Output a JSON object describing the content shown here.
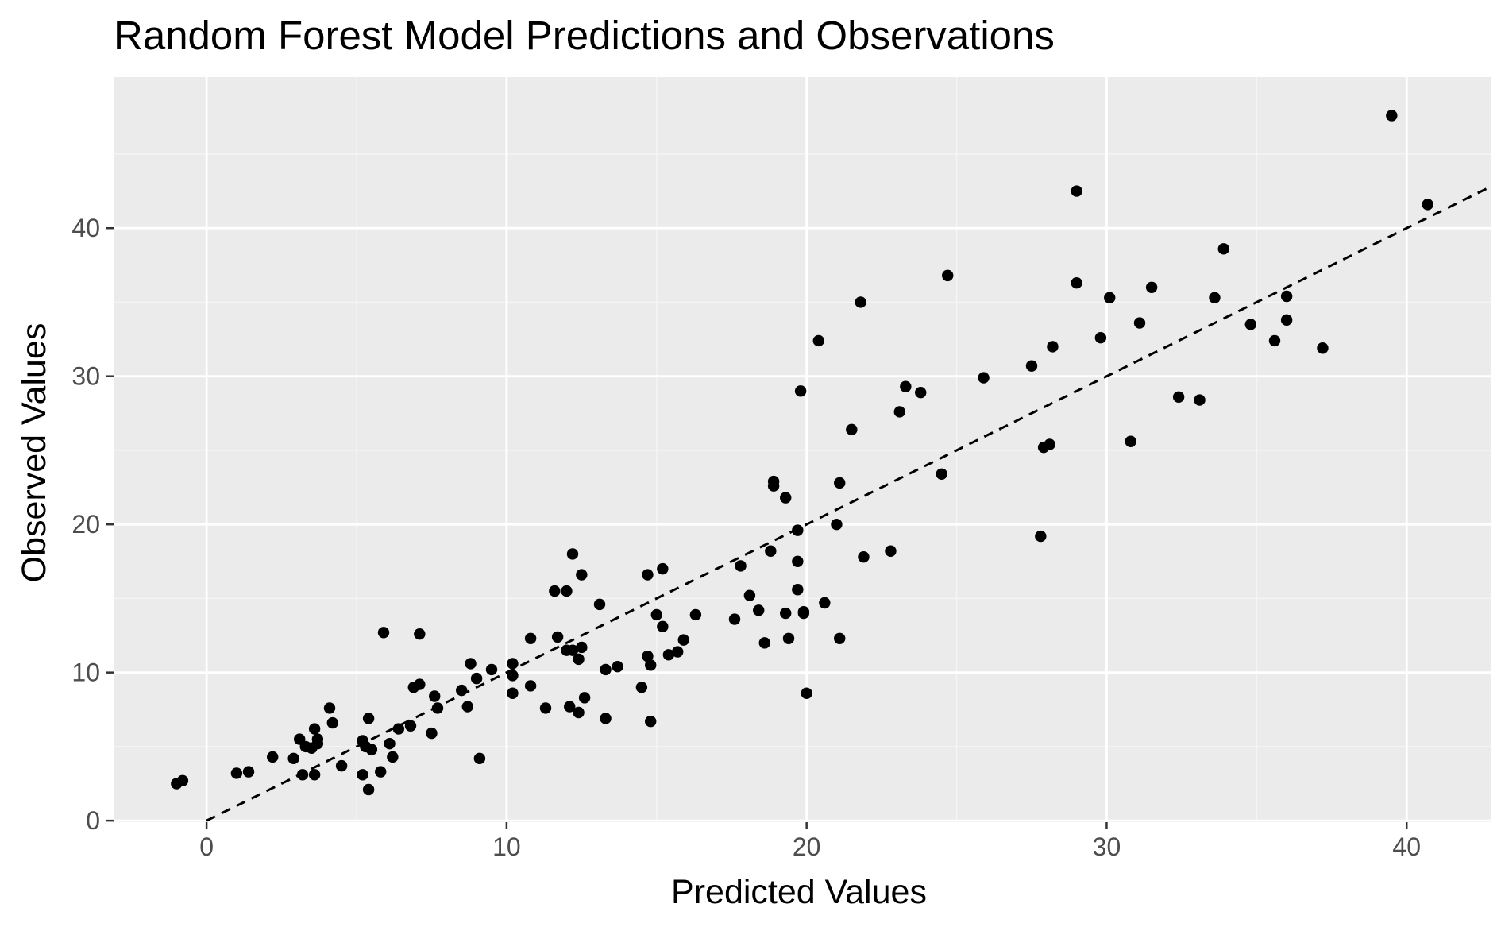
{
  "chart_data": {
    "type": "scatter",
    "title": "Random Forest Model Predictions and Observations",
    "xlabel": "Predicted Values",
    "ylabel": "Observed Values",
    "xlim": [
      -3.1,
      42.8
    ],
    "ylim": [
      -0.1,
      50.2
    ],
    "x_ticks": [
      0,
      10,
      20,
      30,
      40
    ],
    "y_ticks": [
      0,
      10,
      20,
      30,
      40
    ],
    "grid": true,
    "legend": "none",
    "colors": {
      "panel": "#ebebeb",
      "grid_major": "#ffffff",
      "grid_minor": "#f5f5f5",
      "point": "#000000",
      "reference_line": "#000000",
      "tick": "#333333",
      "tick_label": "#4d4d4d"
    },
    "reference_line": {
      "style": "dashed",
      "slope": 1,
      "intercept": 0,
      "x_from": 0,
      "x_to": 42.8
    },
    "points": [
      [
        -1.0,
        2.5
      ],
      [
        -0.8,
        2.7
      ],
      [
        1.0,
        3.2
      ],
      [
        1.4,
        3.3
      ],
      [
        2.2,
        4.3
      ],
      [
        2.9,
        4.2
      ],
      [
        3.1,
        5.5
      ],
      [
        3.2,
        3.1
      ],
      [
        3.3,
        5.0
      ],
      [
        3.5,
        4.9
      ],
      [
        3.6,
        3.1
      ],
      [
        3.6,
        6.2
      ],
      [
        3.7,
        5.2
      ],
      [
        3.7,
        5.5
      ],
      [
        4.1,
        7.6
      ],
      [
        4.2,
        6.6
      ],
      [
        4.5,
        3.7
      ],
      [
        5.2,
        5.4
      ],
      [
        5.2,
        3.1
      ],
      [
        5.3,
        5.0
      ],
      [
        5.4,
        6.9
      ],
      [
        5.4,
        2.1
      ],
      [
        5.5,
        4.8
      ],
      [
        5.8,
        3.3
      ],
      [
        5.9,
        12.7
      ],
      [
        6.1,
        5.2
      ],
      [
        6.2,
        4.3
      ],
      [
        6.4,
        6.2
      ],
      [
        6.8,
        6.4
      ],
      [
        6.9,
        9.0
      ],
      [
        7.1,
        9.2
      ],
      [
        7.1,
        12.6
      ],
      [
        7.5,
        5.9
      ],
      [
        7.6,
        8.4
      ],
      [
        7.7,
        7.6
      ],
      [
        8.5,
        8.8
      ],
      [
        8.7,
        7.7
      ],
      [
        8.8,
        10.6
      ],
      [
        9.0,
        9.6
      ],
      [
        9.1,
        4.2
      ],
      [
        9.5,
        10.2
      ],
      [
        10.2,
        10.6
      ],
      [
        10.2,
        9.8
      ],
      [
        10.2,
        8.6
      ],
      [
        10.8,
        12.3
      ],
      [
        10.8,
        9.1
      ],
      [
        11.3,
        7.6
      ],
      [
        11.6,
        15.5
      ],
      [
        11.7,
        12.4
      ],
      [
        12.0,
        15.5
      ],
      [
        12.0,
        11.5
      ],
      [
        12.1,
        7.7
      ],
      [
        12.2,
        11.5
      ],
      [
        12.2,
        18.0
      ],
      [
        12.4,
        7.3
      ],
      [
        12.4,
        10.9
      ],
      [
        12.5,
        11.7
      ],
      [
        12.5,
        16.6
      ],
      [
        12.6,
        8.3
      ],
      [
        13.1,
        14.6
      ],
      [
        13.3,
        10.2
      ],
      [
        13.3,
        6.9
      ],
      [
        13.7,
        10.4
      ],
      [
        14.5,
        9.0
      ],
      [
        14.7,
        11.1
      ],
      [
        14.7,
        16.6
      ],
      [
        14.8,
        10.5
      ],
      [
        14.8,
        6.7
      ],
      [
        15.0,
        13.9
      ],
      [
        15.2,
        13.1
      ],
      [
        15.2,
        17.0
      ],
      [
        15.4,
        11.2
      ],
      [
        15.7,
        11.4
      ],
      [
        15.9,
        12.2
      ],
      [
        16.3,
        13.9
      ],
      [
        17.6,
        13.6
      ],
      [
        17.8,
        17.2
      ],
      [
        18.1,
        15.2
      ],
      [
        18.4,
        14.2
      ],
      [
        18.6,
        12.0
      ],
      [
        18.8,
        18.2
      ],
      [
        18.9,
        22.6
      ],
      [
        18.9,
        22.9
      ],
      [
        19.3,
        14.0
      ],
      [
        19.3,
        21.8
      ],
      [
        19.4,
        12.3
      ],
      [
        19.7,
        19.6
      ],
      [
        19.7,
        17.5
      ],
      [
        19.7,
        15.6
      ],
      [
        19.8,
        29.0
      ],
      [
        19.9,
        14.0
      ],
      [
        19.9,
        14.1
      ],
      [
        20.0,
        8.6
      ],
      [
        20.4,
        32.4
      ],
      [
        20.6,
        14.7
      ],
      [
        21.0,
        20.0
      ],
      [
        21.1,
        12.3
      ],
      [
        21.1,
        22.8
      ],
      [
        21.5,
        26.4
      ],
      [
        21.8,
        35.0
      ],
      [
        21.9,
        17.8
      ],
      [
        22.8,
        18.2
      ],
      [
        23.1,
        27.6
      ],
      [
        23.3,
        29.3
      ],
      [
        23.8,
        28.9
      ],
      [
        24.5,
        23.4
      ],
      [
        24.7,
        36.8
      ],
      [
        25.9,
        29.9
      ],
      [
        27.5,
        30.7
      ],
      [
        27.8,
        19.2
      ],
      [
        27.9,
        25.2
      ],
      [
        28.1,
        25.4
      ],
      [
        28.2,
        32.0
      ],
      [
        29.0,
        42.5
      ],
      [
        29.0,
        36.3
      ],
      [
        29.8,
        32.6
      ],
      [
        30.1,
        35.3
      ],
      [
        30.8,
        25.6
      ],
      [
        31.1,
        33.6
      ],
      [
        31.5,
        36.0
      ],
      [
        32.4,
        28.6
      ],
      [
        33.1,
        28.4
      ],
      [
        33.6,
        35.3
      ],
      [
        33.9,
        38.6
      ],
      [
        34.8,
        33.5
      ],
      [
        35.6,
        32.4
      ],
      [
        36.0,
        35.4
      ],
      [
        36.0,
        33.8
      ],
      [
        37.2,
        31.9
      ],
      [
        39.5,
        47.6
      ],
      [
        40.7,
        41.6
      ]
    ]
  }
}
